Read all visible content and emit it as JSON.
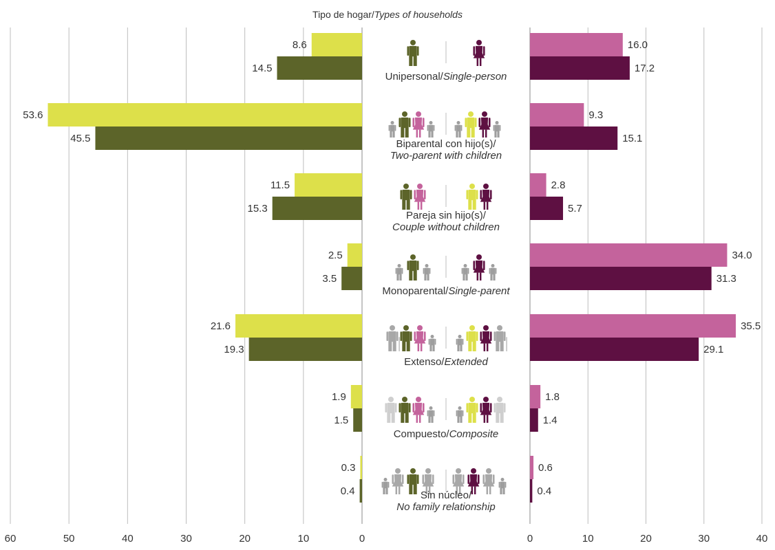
{
  "chart_data": {
    "type": "bar",
    "orientation": "horizontal",
    "title_main": "Tipo de hogar/",
    "title_italic": "Types of households",
    "categories": [
      {
        "es": "Unipersonal/",
        "en": "Single-person",
        "lines": 1
      },
      {
        "es": "Biparental con hijo(s)/",
        "en": "Two-parent with children",
        "lines": 2
      },
      {
        "es": "Pareja sin hijo(s)/",
        "en": "Couple without children",
        "lines": 2
      },
      {
        "es": "Monoparental/",
        "en": "Single-parent",
        "lines": 1
      },
      {
        "es": "Extenso/",
        "en": "Extended",
        "lines": 1
      },
      {
        "es": "Compuesto/",
        "en": "Composite",
        "lines": 1
      },
      {
        "es": "Sin núcleo/",
        "en": "No family relationship",
        "lines": 2
      }
    ],
    "left_panel": {
      "xlim": [
        0,
        60
      ],
      "ticks": [
        "0",
        "10",
        "20",
        "30",
        "40",
        "50",
        "60"
      ],
      "series": [
        {
          "color": "#dde04a",
          "values": [
            8.6,
            53.6,
            11.5,
            2.5,
            21.6,
            1.9,
            0.3
          ],
          "labels": [
            "8.6",
            "53.6",
            "11.5",
            "2.5",
            "21.6",
            "1.9",
            "0.3"
          ]
        },
        {
          "color": "#5c6429",
          "values": [
            14.5,
            45.5,
            15.3,
            3.5,
            19.3,
            1.5,
            0.4
          ],
          "labels": [
            "14.5",
            "45.5",
            "15.3",
            "3.5",
            "19.3",
            "1.5",
            "0.4"
          ]
        }
      ]
    },
    "right_panel": {
      "xlim": [
        0,
        40
      ],
      "ticks": [
        "0",
        "10",
        "20",
        "30",
        "40"
      ],
      "series": [
        {
          "color": "#c4639c",
          "values": [
            16.0,
            9.3,
            2.8,
            34.0,
            35.5,
            1.8,
            0.6
          ],
          "labels": [
            "16.0",
            "9.3",
            "2.8",
            "34.0",
            "35.5",
            "1.8",
            "0.6"
          ]
        },
        {
          "color": "#5e1042",
          "values": [
            17.2,
            15.1,
            5.7,
            31.3,
            29.1,
            1.4,
            0.4
          ],
          "labels": [
            "17.2",
            "15.1",
            "5.7",
            "31.3",
            "29.1",
            "1.4",
            "0.4"
          ]
        }
      ]
    },
    "grid": true,
    "icon_colors": {
      "man": "#5c6429",
      "woman_pink": "#c4639c",
      "man_yellow": "#dde04a",
      "woman_dark": "#5e1042",
      "child": "#9e9e9e",
      "elder": "#a8a8a8",
      "other": "#cfcfcf"
    }
  }
}
